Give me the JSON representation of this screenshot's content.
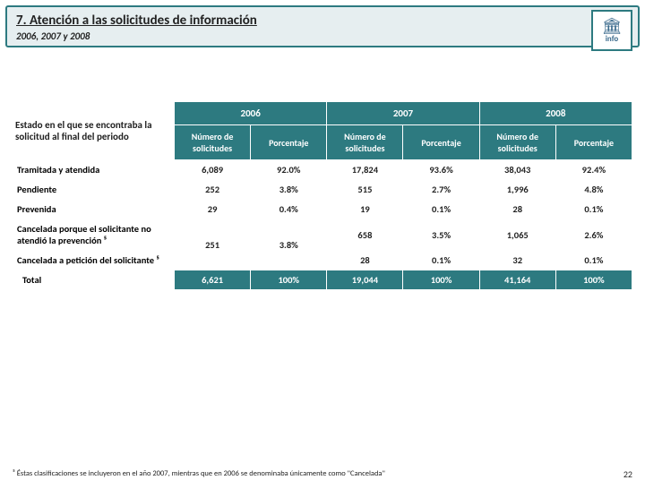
{
  "header": {
    "title": "7. Atención a las solicitudes de información",
    "subtitle": "2006, 2007 y 2008",
    "logo_text": "info",
    "logo_icon": "🏛"
  },
  "table": {
    "estado_header": "Estado en el que se encontraba la solicitud al final del periodo",
    "years": [
      "2006",
      "2007",
      "2008"
    ],
    "sub_headers": {
      "num": "Número de solicitudes",
      "pct": "Porcentaje"
    },
    "rows": [
      {
        "label": "Tramitada y atendida",
        "v": [
          "6,089",
          "92.0%",
          "17,824",
          "93.6%",
          "38,043",
          "92.4%"
        ]
      },
      {
        "label": "Pendiente",
        "v": [
          "252",
          "3.8%",
          "515",
          "2.7%",
          "1,996",
          "4.8%"
        ]
      },
      {
        "label": "Prevenida",
        "v": [
          "29",
          "0.4%",
          "19",
          "0.1%",
          "28",
          "0.1%"
        ]
      }
    ],
    "merged_pair": {
      "label_a": "Cancelada porque el solicitante no atendió la prevención ⁵",
      "label_b": "Cancelada a petición del solicitante ⁵",
      "merged": [
        "251",
        "3.8%"
      ],
      "a": [
        "658",
        "3.5%",
        "1,065",
        "2.6%"
      ],
      "b": [
        "28",
        "0.1%",
        "32",
        "0.1%"
      ]
    },
    "total": {
      "label": "Total",
      "v": [
        "6,621",
        "100%",
        "19,044",
        "100%",
        "41,164",
        "100%"
      ]
    }
  },
  "footnote": {
    "text": "⁵ Éstas clasificaciones se incluyeron en el año 2007, mientras que en 2006 se denominaba únicamente como \"Cancelada\""
  },
  "page_number": "22"
}
